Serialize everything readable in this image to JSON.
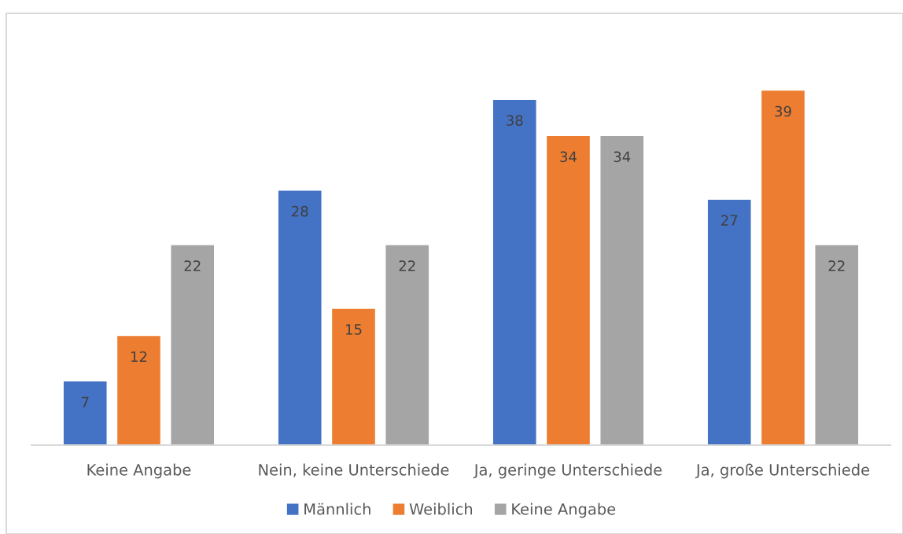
{
  "chart_data": {
    "type": "bar",
    "categories": [
      "Keine Angabe",
      "Nein, keine Unterschiede",
      "Ja, geringe Unterschiede",
      "Ja, große Unterschiede"
    ],
    "series": [
      {
        "name": "Männlich",
        "color": "#4472c4",
        "values": [
          7,
          28,
          38,
          27
        ]
      },
      {
        "name": "Weiblich",
        "color": "#ed7d31",
        "values": [
          12,
          15,
          34,
          39
        ]
      },
      {
        "name": "Keine Angabe",
        "color": "#a5a5a5",
        "values": [
          22,
          22,
          34,
          22
        ]
      }
    ],
    "data_labels": true,
    "legend": "bottom"
  }
}
